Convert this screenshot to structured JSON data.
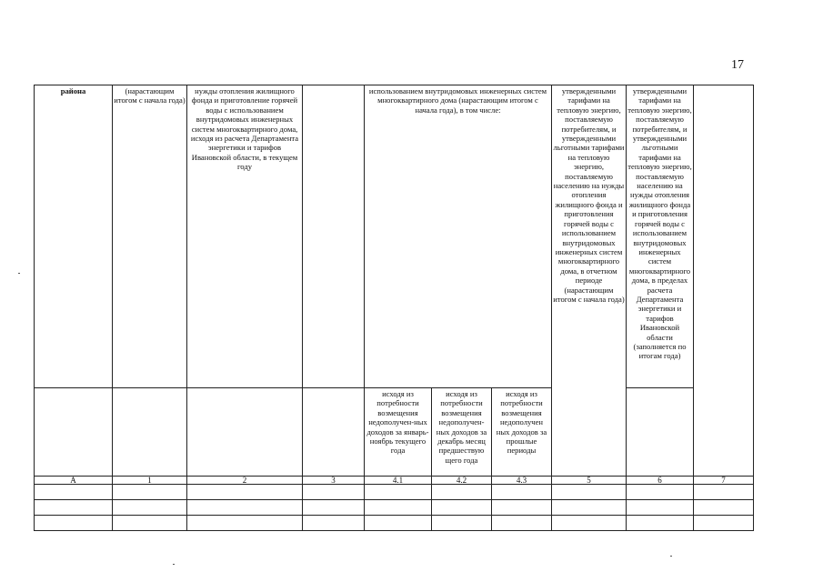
{
  "page_number": "17",
  "table": {
    "header_row1": [
      "района",
      "(нарастающим итогом с начала года)",
      "нужды отопления жилищного фонда и приготовление горячей воды с использованием внутридомовых инженерных систем многоквартирного дома, исходя из расчета Департамента энергетики и тарифов Ивановской области, в текущем году",
      "",
      "использованием внутридомовых инженерных систем многоквартирного дома (нарастающим итогом с начала года), в том числе:",
      "утвержденными тарифами на тепловую энергию, поставляемую потребителям, и утвержденными льготными тарифами на тепловую энергию, поставляемую населению на нужды отопления жилищного фонда и приготовления горячей воды с использованием внутридомовых инженерных систем многоквартирного дома, в отчетном периоде (нарастающим итогом с начала года)",
      "утвержденными тарифами на тепловую энергию, поставляемую потребителям, и утвержденными льготными тарифами на тепловую энергию, поставляемую населению на нужды отопления жилищного фонда и приготовления горячей воды с использованием внутридомовых инженерных систем многоквартирного дома, в пределах расчета Департамента энергетики и тарифов Ивановской области (заполняется по итогам года)",
      ""
    ],
    "subheaders": [
      "исходя из потребности возмещения недополучен-ных доходов за январь-ноябрь текущего года",
      "исходя из потребности возмещения недополучен-ных доходов за декабрь месяц предшествую щего года",
      "исходя из потребности возмещения недополучен ных доходов за прошлые периоды"
    ],
    "column_numbers": [
      "А",
      "1",
      "2",
      "3",
      "4.1",
      "4.2",
      "4.3",
      "5",
      "6",
      "7"
    ],
    "empty_rows": 3
  }
}
